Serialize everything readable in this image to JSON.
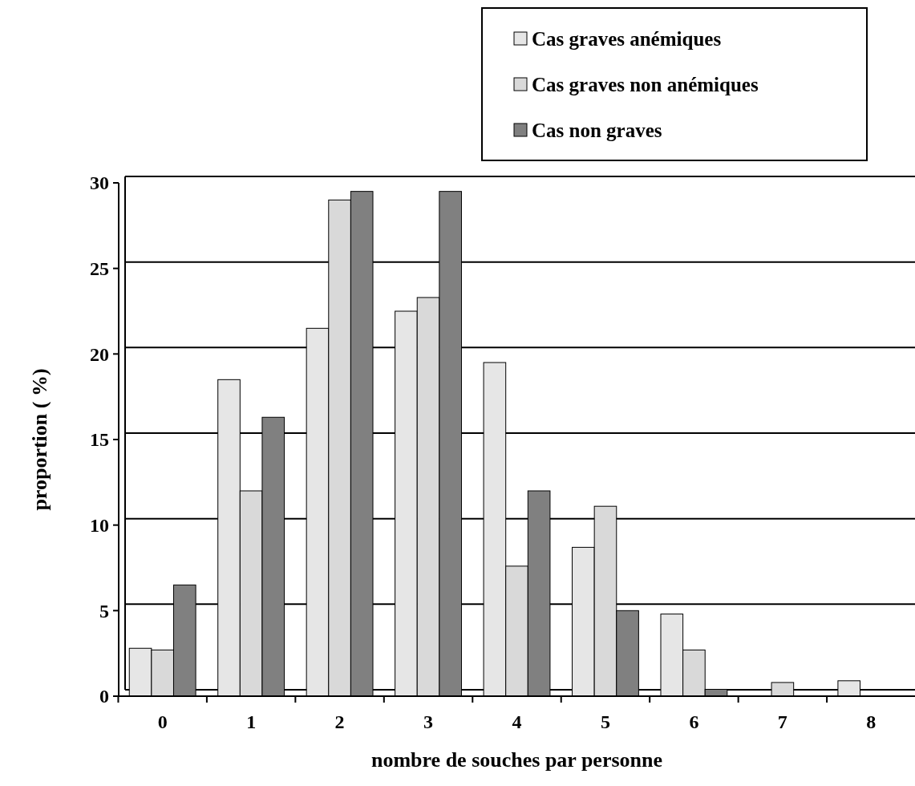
{
  "chart_data": {
    "type": "bar",
    "xlabel": "nombre de souches par personne",
    "ylabel": "proportion ( %)",
    "categories": [
      "0",
      "1",
      "2",
      "3",
      "4",
      "5",
      "6",
      "7",
      "8"
    ],
    "series": [
      {
        "name": "Cas graves anémiques",
        "color": "#e6e6e6",
        "values": [
          2.8,
          18.5,
          21.5,
          22.5,
          19.5,
          8.7,
          4.8,
          0,
          0.9
        ]
      },
      {
        "name": "Cas graves non anémiques",
        "color": "#d9d9d9",
        "values": [
          2.7,
          12,
          29,
          23.3,
          7.6,
          11.1,
          2.7,
          0.8,
          0
        ]
      },
      {
        "name": "Cas non graves",
        "color": "#808080",
        "values": [
          6.5,
          16.3,
          29.5,
          29.5,
          12,
          5,
          0.4,
          0,
          0
        ]
      }
    ],
    "ylim": [
      0,
      30
    ],
    "yticks": [
      0,
      5,
      10,
      15,
      20,
      25,
      30
    ],
    "grid": "y",
    "legend": "top right"
  }
}
